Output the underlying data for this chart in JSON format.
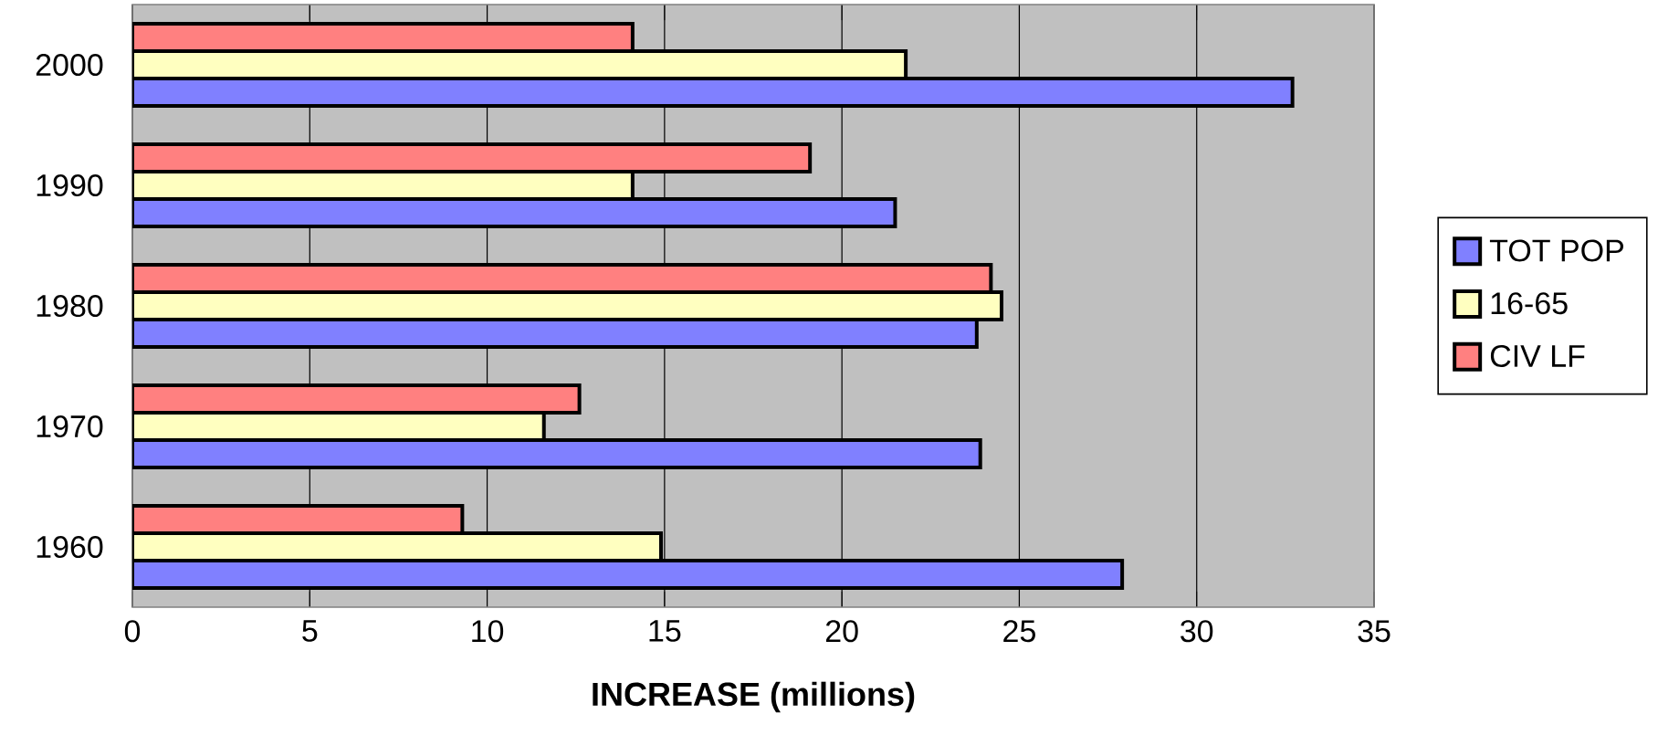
{
  "chart_data": {
    "type": "bar",
    "orientation": "horizontal",
    "xlabel": "INCREASE (millions)",
    "categories": [
      "2000",
      "1990",
      "1980",
      "1970",
      "1960"
    ],
    "series": [
      {
        "name": "TOT POP",
        "color": "#8080ff",
        "values": [
          32.7,
          21.5,
          23.8,
          23.9,
          27.9
        ]
      },
      {
        "name": "16-65",
        "color": "#ffffc0",
        "values": [
          21.8,
          14.1,
          24.5,
          11.6,
          14.9
        ]
      },
      {
        "name": "CIV LF",
        "color": "#ff8080",
        "values": [
          14.1,
          19.1,
          24.2,
          12.6,
          9.3
        ]
      }
    ],
    "xlim": [
      0,
      35
    ],
    "xticks": [
      0,
      5,
      10,
      15,
      20,
      25,
      30,
      35
    ],
    "grid": "x",
    "legend": "right"
  }
}
